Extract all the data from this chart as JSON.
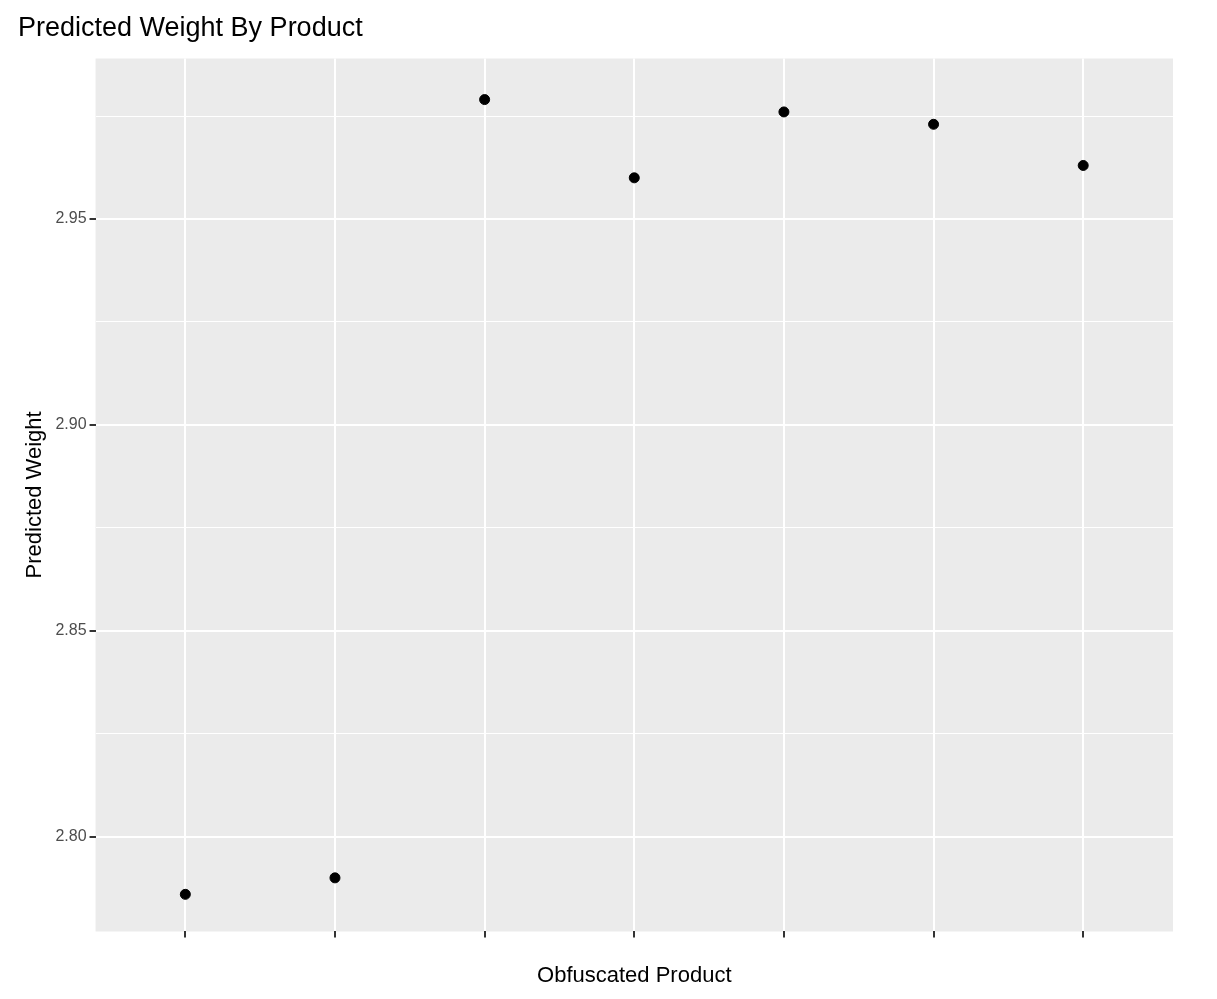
{
  "chart_data": {
    "type": "scatter",
    "title": "Predicted Weight By Product",
    "xlabel": "Obfuscated Product",
    "ylabel": "Predicted Weight",
    "categories": [
      null,
      null,
      null,
      null,
      null,
      null,
      null
    ],
    "values": [
      2.786,
      2.79,
      2.979,
      2.96,
      2.976,
      2.973,
      2.963
    ],
    "color": "#000000",
    "marker": "circle",
    "ylim": [
      2.777,
      2.989
    ],
    "yticks": [
      {
        "value": 2.8,
        "label": "2.80"
      },
      {
        "value": 2.825,
        "label": null
      },
      2.85,
      {
        "value": 2.875,
        "label": null
      },
      {
        "value": 2.9,
        "label": "2.90"
      },
      {
        "value": 2.925,
        "label": null
      },
      2.95,
      {
        "value": 2.975,
        "label": null
      }
    ],
    "grid": true
  }
}
